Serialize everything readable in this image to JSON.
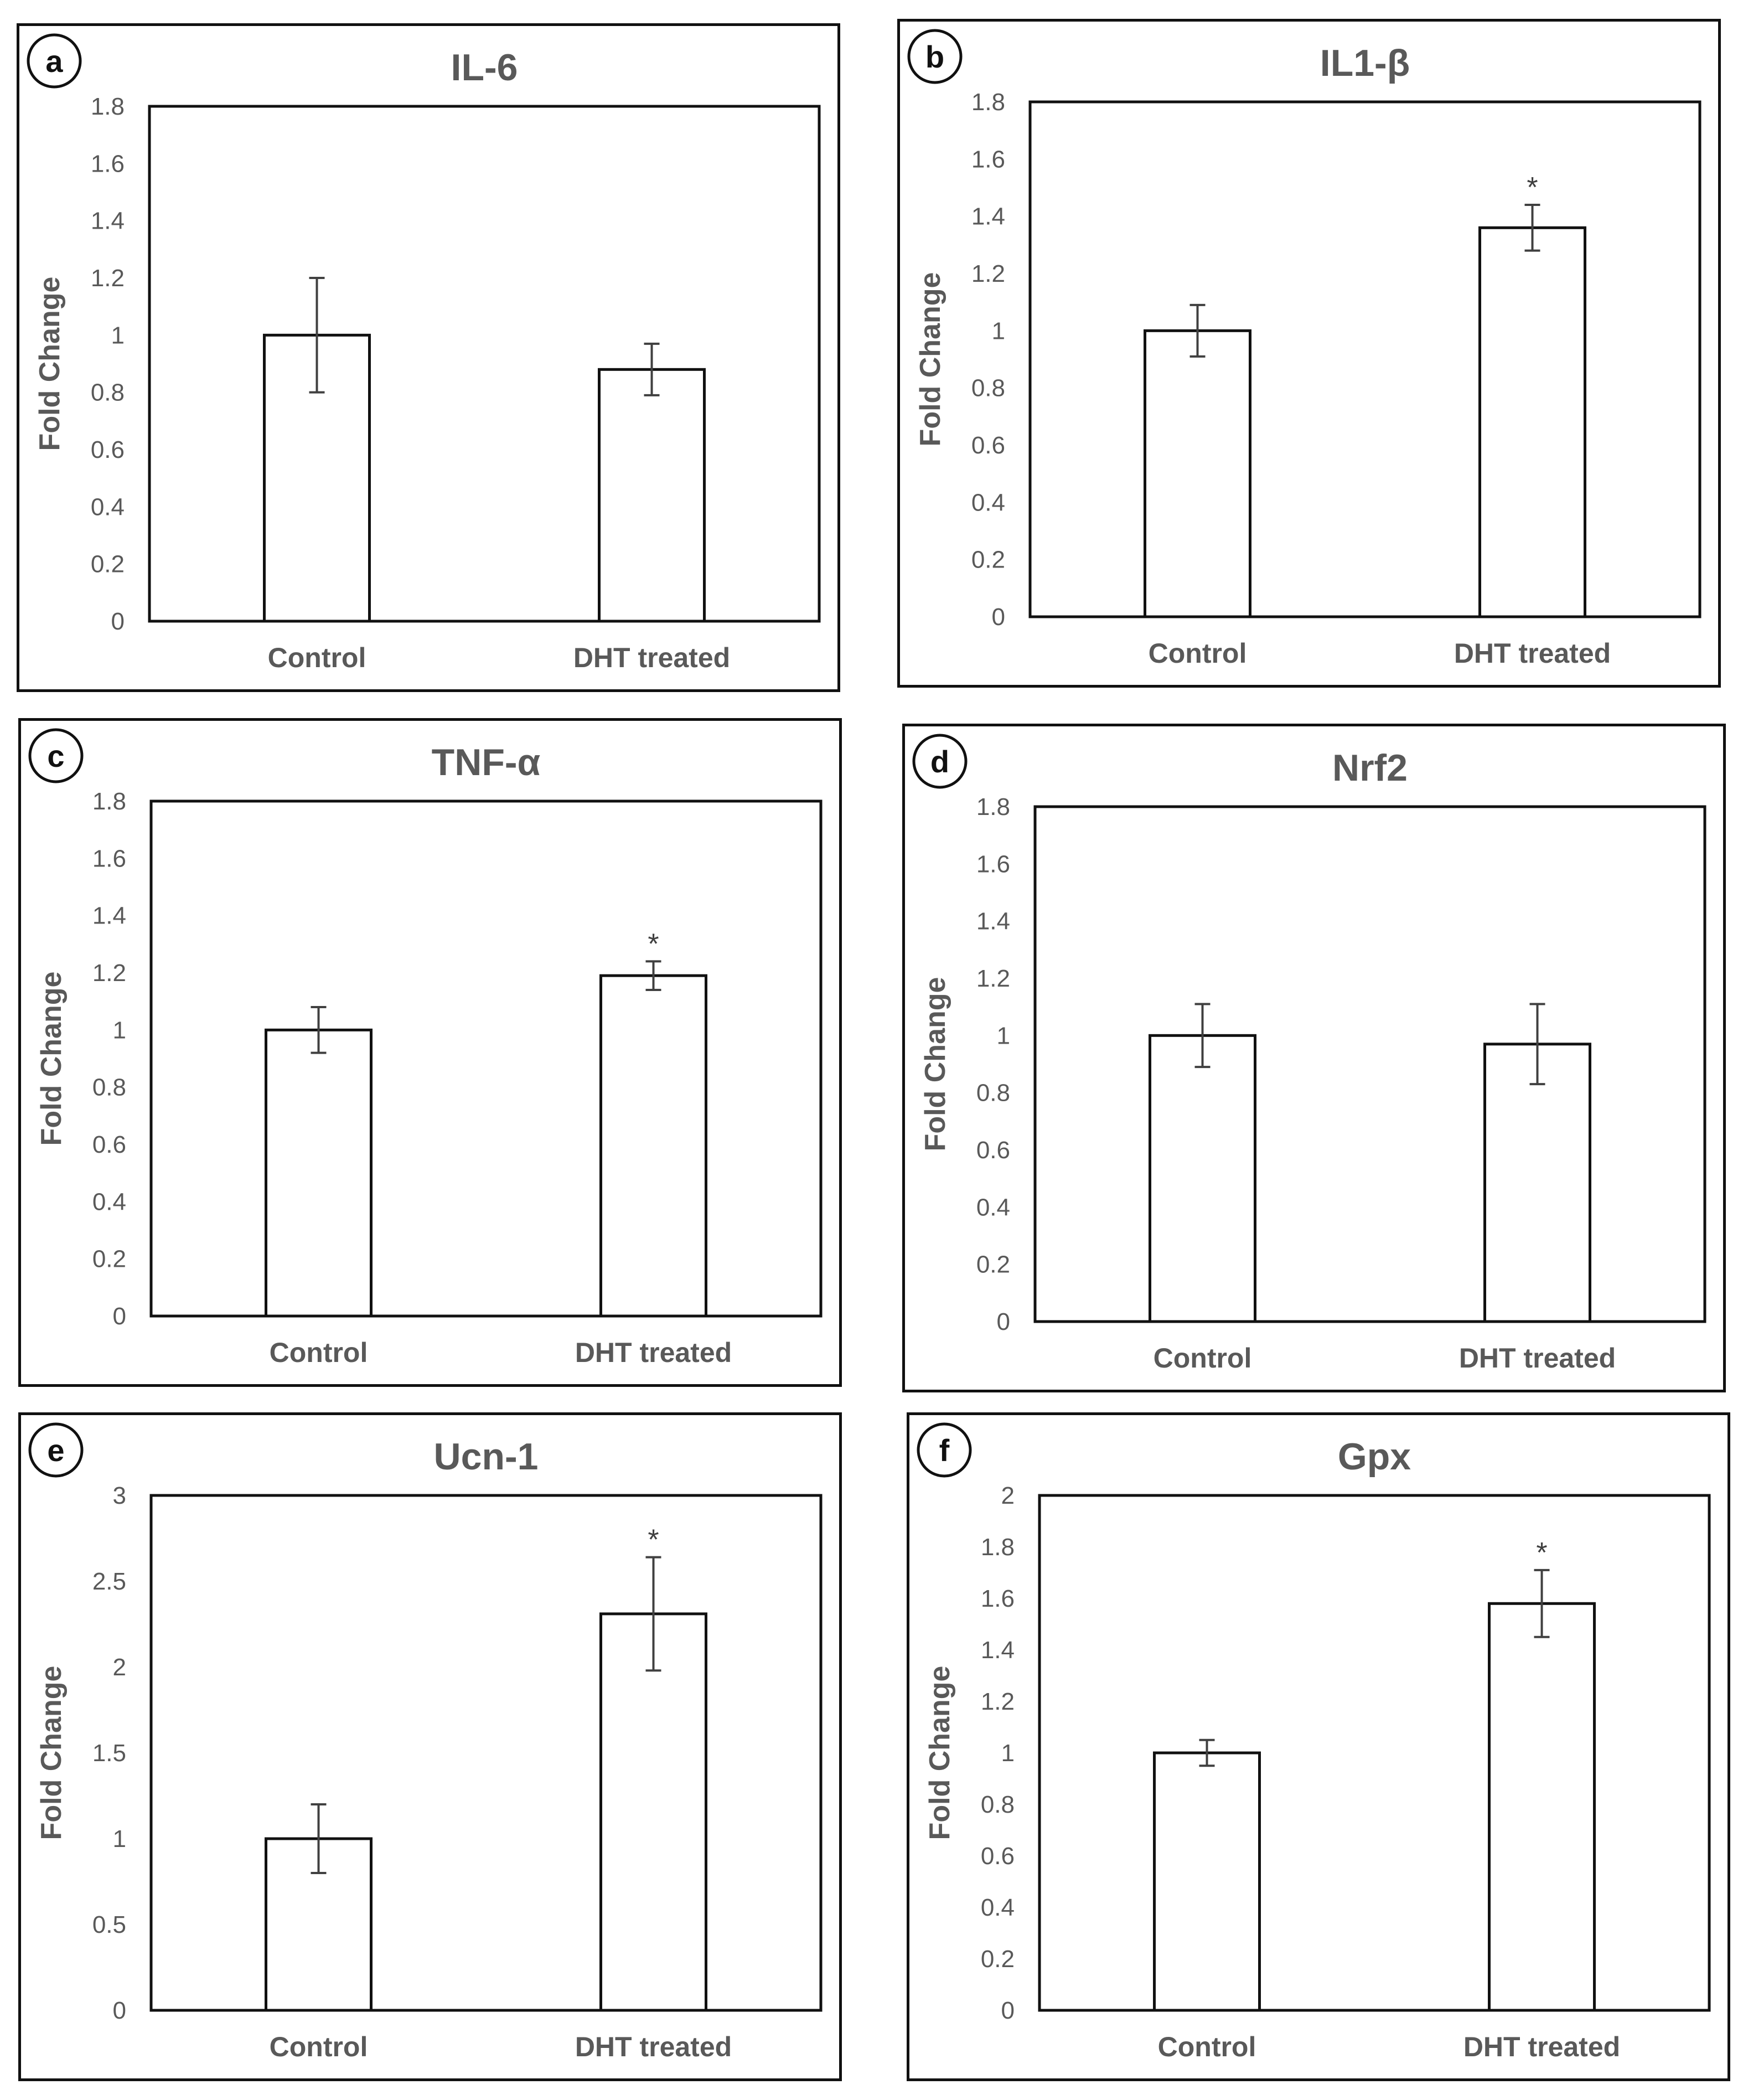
{
  "figure": {
    "background": "#ffffff",
    "axis_color": "#111111",
    "text_color": "#595959",
    "bar_fill": "#ffffff",
    "error_color": "#404040"
  },
  "chart_data": [
    {
      "id": "a",
      "panel_letter": "a",
      "type": "bar",
      "title": "IL-6",
      "ylabel": "Fold Change",
      "xlabel": "",
      "categories": [
        "Control",
        "DHT treated"
      ],
      "values": [
        1.0,
        0.88
      ],
      "errors": [
        0.2,
        0.09
      ],
      "significance": [
        "",
        ""
      ],
      "ylim": [
        0,
        1.8
      ],
      "yticks": [
        0,
        0.2,
        0.4,
        0.6,
        0.8,
        1,
        1.2,
        1.4,
        1.6,
        1.8
      ],
      "yticklabels": [
        "0",
        "0.2",
        "0.4",
        "0.6",
        "0.8",
        "1",
        "1.2",
        "1.4",
        "1.6",
        "1.8"
      ],
      "grid": false,
      "legend": "none"
    },
    {
      "id": "b",
      "panel_letter": "b",
      "type": "bar",
      "title": "IL1-β",
      "ylabel": "Fold Change",
      "xlabel": "",
      "categories": [
        "Control",
        "DHT treated"
      ],
      "values": [
        1.0,
        1.36
      ],
      "errors": [
        0.09,
        0.08
      ],
      "significance": [
        "",
        "*"
      ],
      "ylim": [
        0,
        1.8
      ],
      "yticks": [
        0,
        0.2,
        0.4,
        0.6,
        0.8,
        1,
        1.2,
        1.4,
        1.6,
        1.8
      ],
      "yticklabels": [
        "0",
        "0.2",
        "0.4",
        "0.6",
        "0.8",
        "1",
        "1.2",
        "1.4",
        "1.6",
        "1.8"
      ],
      "grid": false,
      "legend": "none"
    },
    {
      "id": "c",
      "panel_letter": "c",
      "type": "bar",
      "title": "TNF-α",
      "ylabel": "Fold Change",
      "xlabel": "",
      "categories": [
        "Control",
        "DHT treated"
      ],
      "values": [
        1.0,
        1.19
      ],
      "errors": [
        0.08,
        0.05
      ],
      "significance": [
        "",
        "*"
      ],
      "ylim": [
        0,
        1.8
      ],
      "yticks": [
        0,
        0.2,
        0.4,
        0.6,
        0.8,
        1,
        1.2,
        1.4,
        1.6,
        1.8
      ],
      "yticklabels": [
        "0",
        "0.2",
        "0.4",
        "0.6",
        "0.8",
        "1",
        "1.2",
        "1.4",
        "1.6",
        "1.8"
      ],
      "grid": false,
      "legend": "none"
    },
    {
      "id": "d",
      "panel_letter": "d",
      "type": "bar",
      "title": "Nrf2",
      "ylabel": "Fold Change",
      "xlabel": "",
      "categories": [
        "Control",
        "DHT treated"
      ],
      "values": [
        1.0,
        0.97
      ],
      "errors": [
        0.11,
        0.14
      ],
      "significance": [
        "",
        ""
      ],
      "ylim": [
        0,
        1.8
      ],
      "yticks": [
        0,
        0.2,
        0.4,
        0.6,
        0.8,
        1,
        1.2,
        1.4,
        1.6,
        1.8
      ],
      "yticklabels": [
        "0",
        "0.2",
        "0.4",
        "0.6",
        "0.8",
        "1",
        "1.2",
        "1.4",
        "1.6",
        "1.8"
      ],
      "grid": false,
      "legend": "none"
    },
    {
      "id": "e",
      "panel_letter": "e",
      "type": "bar",
      "title": "Ucn-1",
      "ylabel": "Fold Change",
      "xlabel": "",
      "categories": [
        "Control",
        "DHT treated"
      ],
      "values": [
        1.0,
        2.31
      ],
      "errors": [
        0.2,
        0.33
      ],
      "significance": [
        "",
        "*"
      ],
      "ylim": [
        0,
        3
      ],
      "yticks": [
        0,
        0.5,
        1,
        1.5,
        2,
        2.5,
        3
      ],
      "yticklabels": [
        "0",
        "0.5",
        "1",
        "1.5",
        "2",
        "2.5",
        "3"
      ],
      "grid": false,
      "legend": "none"
    },
    {
      "id": "f",
      "panel_letter": "f",
      "type": "bar",
      "title": "Gpx",
      "ylabel": "Fold Change",
      "xlabel": "",
      "categories": [
        "Control",
        "DHT treated"
      ],
      "values": [
        1.0,
        1.58
      ],
      "errors": [
        0.05,
        0.13
      ],
      "significance": [
        "",
        "*"
      ],
      "ylim": [
        0,
        2
      ],
      "yticks": [
        0,
        0.2,
        0.4,
        0.6,
        0.8,
        1,
        1.2,
        1.4,
        1.6,
        1.8,
        2
      ],
      "yticklabels": [
        "0",
        "0.2",
        "0.4",
        "0.6",
        "0.8",
        "1",
        "1.2",
        "1.4",
        "1.6",
        "1.8",
        "2"
      ],
      "grid": false,
      "legend": "none"
    }
  ]
}
